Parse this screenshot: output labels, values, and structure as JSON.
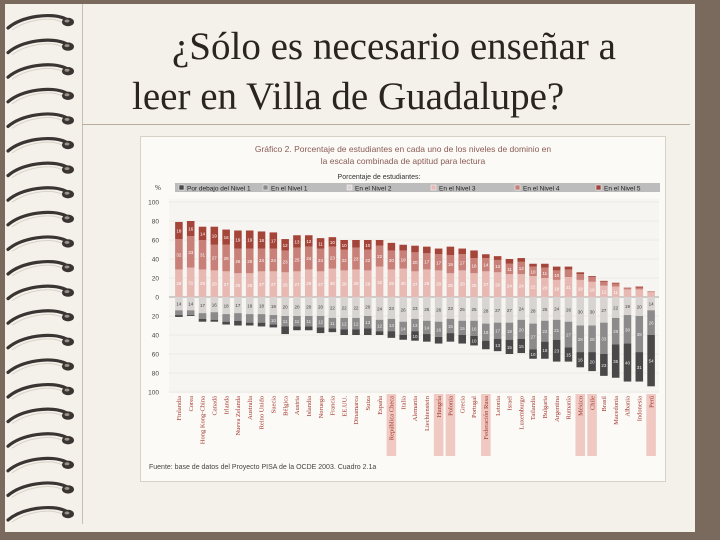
{
  "slide": {
    "title_line1": "¿Sólo es necesario enseñar a",
    "title_line2": "leer en Villa de Guadalupe?"
  },
  "colors": {
    "background": "#7a6a5e",
    "slide": "#f4f1ea",
    "below1": "#4a4848",
    "level1": "#8c8a8a",
    "level2": "#d7d4d2",
    "level3": "#e7b9b2",
    "level4": "#c98078",
    "level5": "#a5453a"
  },
  "chart_data": {
    "type": "bar",
    "title": "Gráfico 2. Porcentaje de estudiantes en cada uno de los niveles de dominio en la escala combinada de aptitud para lectura",
    "legend_title": "Porcentaje de estudiantes:",
    "ylabel": "%",
    "ylim": [
      -100,
      100
    ],
    "yticks": [
      "100",
      "80",
      "60",
      "40",
      "20",
      "0",
      "20",
      "40",
      "60",
      "80",
      "100"
    ],
    "source": "Fuente: base de datos del Proyecto PISA de la OCDE 2003. Cuadro 2.1a",
    "categories": [
      "Finlandia",
      "Corea",
      "Hong Kong-China",
      "Canadá",
      "Irlanda",
      "Nueva Zelanda",
      "Australia",
      "Reino Unido",
      "Suecia",
      "Bélgica",
      "Austria",
      "Islandia",
      "Noruega",
      "Francia",
      "EE.UU.",
      "Dinamarca",
      "Suiza",
      "España",
      "República Checa",
      "Italia",
      "Alemania",
      "Liechtenstein",
      "Hungría",
      "Polonia",
      "Grecia",
      "Portugal",
      "Federación Rusa",
      "Letonia",
      "Israel",
      "Luxemburgo",
      "Tailandia",
      "Bulgaria",
      "Argentina",
      "Rumanía",
      "México",
      "Chile",
      "Brasil",
      "Macedonia",
      "Albania",
      "Indonesia",
      "Perú"
    ],
    "series": [
      {
        "name": "Por debajo del Nivel 1",
        "values": [
          2,
          1,
          3,
          2,
          3,
          5,
          3,
          4,
          3,
          8,
          4,
          4,
          6,
          4,
          6,
          6,
          7,
          4,
          7,
          5,
          10,
          8,
          7,
          9,
          9,
          10,
          9,
          13,
          15,
          15,
          10,
          18,
          23,
          15,
          16,
          20,
          23,
          35,
          40,
          31,
          54
        ]
      },
      {
        "name": "En el Nivel 1",
        "values": [
          5,
          5,
          6,
          8,
          8,
          8,
          9,
          9,
          10,
          11,
          11,
          11,
          12,
          11,
          12,
          12,
          13,
          12,
          13,
          14,
          13,
          14,
          16,
          15,
          15,
          16,
          18,
          17,
          18,
          20,
          27,
          22,
          21,
          27,
          28,
          28,
          33,
          28,
          30,
          38,
          26
        ]
      },
      {
        "name": "En el Nivel 2",
        "values": [
          14,
          14,
          17,
          16,
          18,
          17,
          18,
          18,
          19,
          20,
          20,
          20,
          20,
          22,
          22,
          22,
          20,
          24,
          23,
          26,
          23,
          25,
          26,
          23,
          25,
          25,
          28,
          27,
          27,
          24,
          28,
          25,
          24,
          26,
          30,
          30,
          27,
          22,
          19,
          20,
          14
        ]
      },
      {
        "name": "En el Nivel 3",
        "values": [
          29,
          31,
          29,
          28,
          27,
          25,
          25,
          27,
          27,
          26,
          27,
          29,
          27,
          30,
          28,
          29,
          28,
          32,
          29,
          30,
          27,
          29,
          28,
          25,
          28,
          25,
          27,
          26,
          24,
          24,
          22,
          20,
          18,
          21,
          18,
          16,
          12,
          11,
          8,
          8,
          5
        ]
      },
      {
        "name": "En el Nivel 4",
        "values": [
          32,
          33,
          31,
          27,
          28,
          26,
          26,
          24,
          24,
          23,
          25,
          24,
          24,
          23,
          22,
          23,
          22,
          22,
          20,
          19,
          20,
          17,
          17,
          19,
          17,
          16,
          14,
          13,
          11,
          13,
          10,
          11,
          10,
          8,
          6,
          5,
          4,
          3,
          2,
          2,
          1
        ]
      },
      {
        "name": "En el Nivel 5",
        "values": [
          18,
          16,
          14,
          19,
          16,
          19,
          19,
          18,
          17,
          12,
          13,
          12,
          11,
          10,
          10,
          8,
          10,
          6,
          8,
          6,
          7,
          7,
          6,
          9,
          6,
          8,
          4,
          4,
          5,
          4,
          3,
          4,
          4,
          3,
          2,
          1,
          1,
          1,
          0,
          1,
          0
        ]
      }
    ]
  }
}
